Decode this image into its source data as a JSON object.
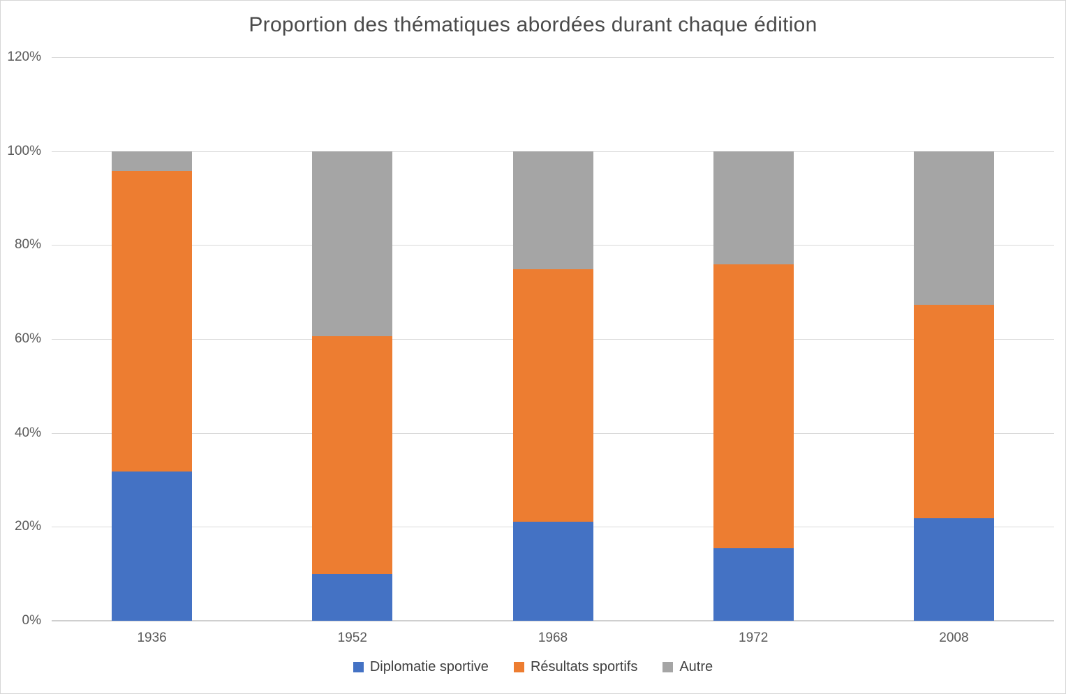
{
  "chart_data": {
    "type": "bar",
    "stacked": true,
    "units": "percent",
    "title": "Proportion des thématiques abordées durant chaque édition",
    "categories": [
      "1936",
      "1952",
      "1968",
      "1972",
      "2008"
    ],
    "series": [
      {
        "name": "Diplomatie sportive",
        "color": "#4472C4",
        "values": [
          31.8,
          10.0,
          21.1,
          15.4,
          21.9
        ]
      },
      {
        "name": "Résultats sportifs",
        "color": "#ED7D31",
        "values": [
          64.0,
          50.6,
          53.7,
          60.5,
          45.4
        ]
      },
      {
        "name": "Autre",
        "color": "#A5A5A5",
        "values": [
          4.2,
          39.4,
          25.2,
          24.1,
          32.7
        ]
      }
    ],
    "xlabel": "",
    "ylabel": "",
    "y_axis": {
      "min": 0,
      "max": 120,
      "step": 20,
      "tick_labels": [
        "0%",
        "20%",
        "40%",
        "60%",
        "80%",
        "100%",
        "120%"
      ]
    },
    "grid": true,
    "legend_position": "bottom",
    "colors": {
      "gridline": "#d9d9d9",
      "axis_text": "#595959",
      "title_text": "#4a4a4a",
      "legend_text": "#404040",
      "background": "#ffffff",
      "frame_border": "#d6d6d6"
    }
  }
}
